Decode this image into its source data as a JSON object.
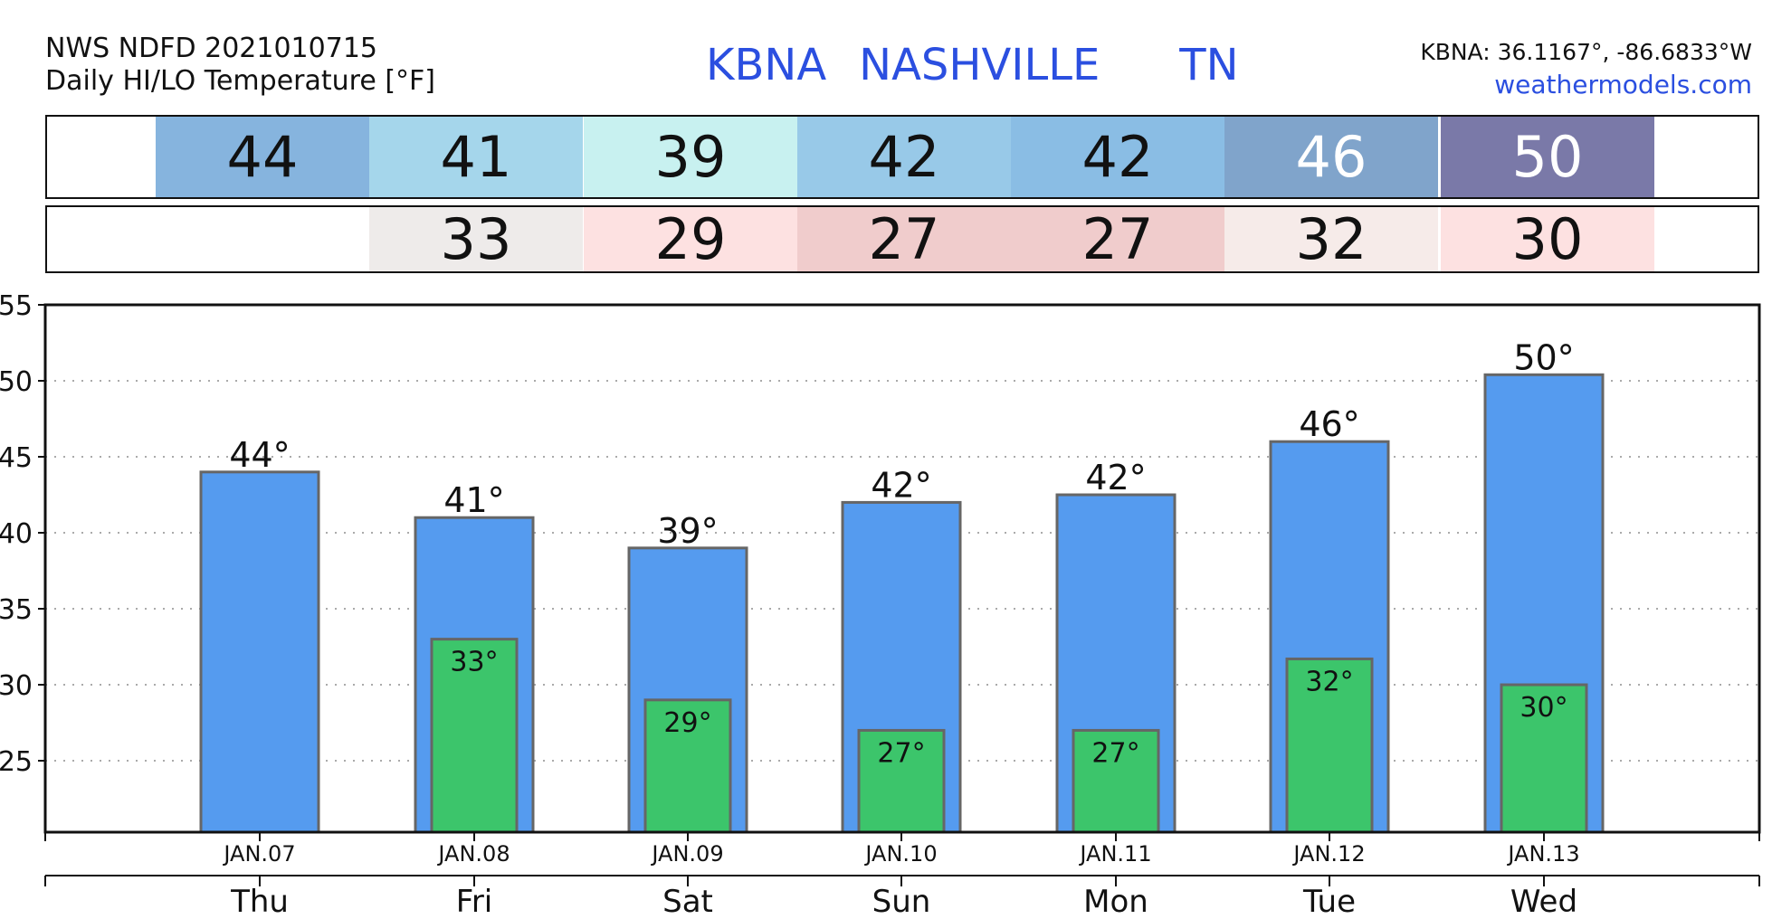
{
  "header": {
    "product": "NWS NDFD 2021010715",
    "subtitle": "Daily HI/LO Temperature [°F]",
    "station": "KBNA",
    "city": "NASHVILLE",
    "state": "TN",
    "coords": "KBNA: 36.1167°, -86.6833°W",
    "site": "weathermodels.com"
  },
  "hi_strip": [
    {
      "value": "44",
      "bg": "#86b4de",
      "fg": "#111111"
    },
    {
      "value": "41",
      "bg": "#a5d6eb",
      "fg": "#111111"
    },
    {
      "value": "39",
      "bg": "#c8f1f0",
      "fg": "#111111"
    },
    {
      "value": "42",
      "bg": "#98c9e8",
      "fg": "#111111"
    },
    {
      "value": "42",
      "bg": "#8abde4",
      "fg": "#111111"
    },
    {
      "value": "46",
      "bg": "#80a4cb",
      "fg": "#ffffff"
    },
    {
      "value": "50",
      "bg": "#7a79a8",
      "fg": "#ffffff"
    }
  ],
  "lo_strip": [
    {
      "value": "",
      "bg": "#ffffff",
      "fg": "#111111"
    },
    {
      "value": "33",
      "bg": "#eeebea",
      "fg": "#111111"
    },
    {
      "value": "29",
      "bg": "#fde1e1",
      "fg": "#111111"
    },
    {
      "value": "27",
      "bg": "#f0cccc",
      "fg": "#111111"
    },
    {
      "value": "27",
      "bg": "#f0cccc",
      "fg": "#111111"
    },
    {
      "value": "32",
      "bg": "#f6ebe9",
      "fg": "#111111"
    },
    {
      "value": "30",
      "bg": "#fde1e1",
      "fg": "#111111"
    }
  ],
  "chart_data": {
    "type": "bar",
    "categories": [
      "JAN.07",
      "JAN.08",
      "JAN.09",
      "JAN.10",
      "JAN.11",
      "JAN.12",
      "JAN.13"
    ],
    "weekdays": [
      "Thu",
      "Fri",
      "Sat",
      "Sun",
      "Mon",
      "Tue",
      "Wed"
    ],
    "series": [
      {
        "values": [
          44,
          41,
          39,
          42,
          42.5,
          46,
          50.4
        ],
        "labels": [
          "44°",
          "41°",
          "39°",
          "42°",
          "42°",
          "46°",
          "50°"
        ],
        "color": "#559bef"
      },
      {
        "values": [
          null,
          33,
          29,
          27,
          27,
          31.7,
          30
        ],
        "labels": [
          "",
          "33°",
          "29°",
          "27°",
          "27°",
          "32°",
          "30°"
        ],
        "color": "#3cc56b"
      }
    ],
    "ylim": [
      20.3,
      55
    ],
    "yticks": [
      25,
      30,
      35,
      40,
      45,
      50,
      55
    ],
    "ytick_labels": [
      "25",
      "30",
      "35",
      "40",
      "45",
      "50",
      "55"
    ],
    "grid": true,
    "colors": {
      "bar_edge": "#666666",
      "grid": "#aaaaaa"
    }
  }
}
